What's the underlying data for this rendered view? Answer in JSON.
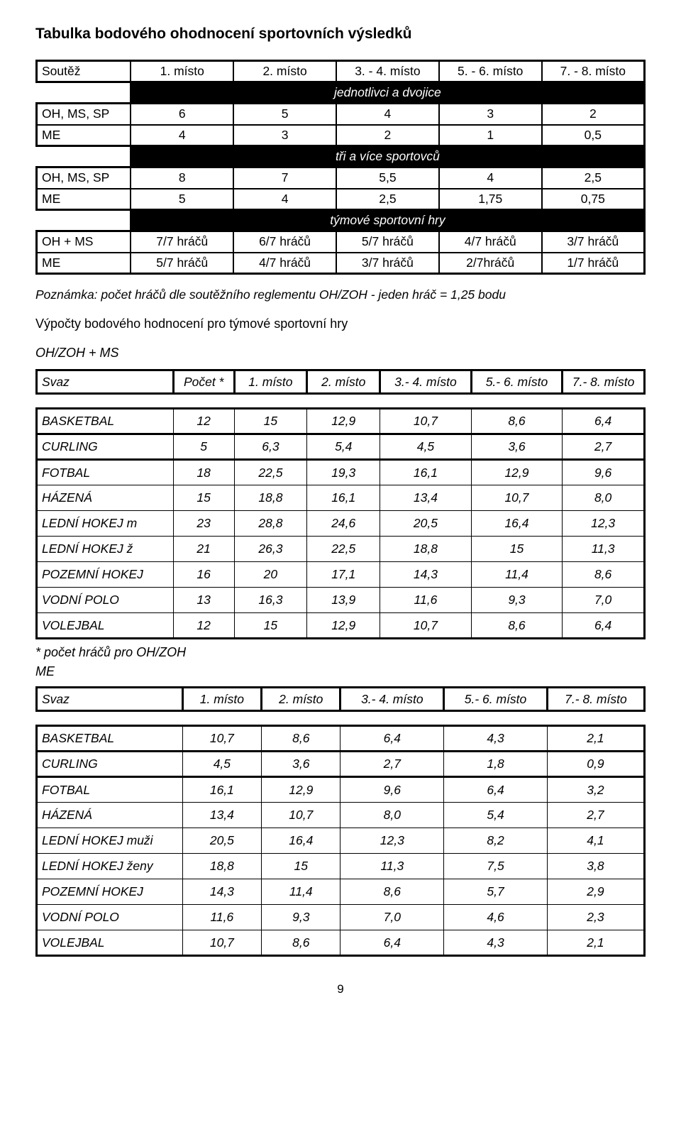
{
  "title": "Tabulka bodového ohodnocení sportovních výsledků",
  "t1": {
    "headers": [
      "Soutěž",
      "1. místo",
      "2. místo",
      "3. - 4. místo",
      "5. - 6. místo",
      "7. - 8. místo"
    ],
    "banner1": "jednotlivci a dvojice",
    "r1": [
      "OH, MS, SP",
      "6",
      "5",
      "4",
      "3",
      "2"
    ],
    "r2": [
      "ME",
      "4",
      "3",
      "2",
      "1",
      "0,5"
    ],
    "banner2": "tři a více sportovců",
    "r3": [
      "OH, MS, SP",
      "8",
      "7",
      "5,5",
      "4",
      "2,5"
    ],
    "r4": [
      "ME",
      "5",
      "4",
      "2,5",
      "1,75",
      "0,75"
    ],
    "banner3": "týmové sportovní hry",
    "r5": [
      "OH + MS",
      "7/7 hráčů",
      "6/7 hráčů",
      "5/7 hráčů",
      "4/7 hráčů",
      "3/7 hráčů"
    ],
    "r6": [
      "ME",
      "5/7 hráčů",
      "4/7 hráčů",
      "3/7 hráčů",
      "2/7hráčů",
      "1/7 hráčů"
    ]
  },
  "note": "Poznámka: počet hráčů dle soutěžního reglementu OH/ZOH - jeden hráč = 1,25 bodu",
  "para": "Výpočty bodového hodnocení pro týmové sportovní hry",
  "section1": "OH/ZOH + MS",
  "hdrA": [
    "Svaz",
    "Počet *",
    "1. místo",
    "2. místo",
    "3.- 4. místo",
    "5.- 6. místo",
    "7.- 8. místo"
  ],
  "tableA": [
    [
      "BASKETBAL",
      "12",
      "15",
      "12,9",
      "10,7",
      "8,6",
      "6,4"
    ],
    [
      "CURLING",
      "5",
      "6,3",
      "5,4",
      "4,5",
      "3,6",
      "2,7"
    ],
    [
      "FOTBAL",
      "18",
      "22,5",
      "19,3",
      "16,1",
      "12,9",
      "9,6"
    ],
    [
      "HÁZENÁ",
      "15",
      "18,8",
      "16,1",
      "13,4",
      "10,7",
      "8,0"
    ],
    [
      "LEDNÍ HOKEJ  m",
      "23",
      "28,8",
      "24,6",
      "20,5",
      "16,4",
      "12,3"
    ],
    [
      "LEDNÍ HOKEJ  ž",
      "21",
      "26,3",
      "22,5",
      "18,8",
      "15",
      "11,3"
    ],
    [
      "POZEMNÍ HOKEJ",
      "16",
      "20",
      "17,1",
      "14,3",
      "11,4",
      "8,6"
    ],
    [
      "VODNÍ POLO",
      "13",
      "16,3",
      "13,9",
      "11,6",
      "9,3",
      "7,0"
    ],
    [
      "VOLEJBAL",
      "12",
      "15",
      "12,9",
      "10,7",
      "8,6",
      "6,4"
    ]
  ],
  "tableA_sep_after": [
    0,
    1
  ],
  "footnoteA": "* počet hráčů pro OH/ZOH",
  "me_label": "ME",
  "hdrB": [
    "Svaz",
    "1. místo",
    "2. místo",
    "3.- 4. místo",
    "5.- 6. místo",
    "7.- 8. místo"
  ],
  "tableB": [
    [
      "BASKETBAL",
      "10,7",
      "8,6",
      "6,4",
      "4,3",
      "2,1"
    ],
    [
      "CURLING",
      "4,5",
      "3,6",
      "2,7",
      "1,8",
      "0,9"
    ],
    [
      "FOTBAL",
      "16,1",
      "12,9",
      "9,6",
      "6,4",
      "3,2"
    ],
    [
      "HÁZENÁ",
      "13,4",
      "10,7",
      "8,0",
      "5,4",
      "2,7"
    ],
    [
      "LEDNÍ HOKEJ  muži",
      "20,5",
      "16,4",
      "12,3",
      "8,2",
      "4,1"
    ],
    [
      "LEDNÍ HOKEJ  ženy",
      "18,8",
      "15",
      "11,3",
      "7,5",
      "3,8"
    ],
    [
      "POZEMNÍ HOKEJ",
      "14,3",
      "11,4",
      "8,6",
      "5,7",
      "2,9"
    ],
    [
      "VODNÍ POLO",
      "11,6",
      "9,3",
      "7,0",
      "4,6",
      "2,3"
    ],
    [
      "VOLEJBAL",
      "10,7",
      "8,6",
      "6,4",
      "4,3",
      "2,1"
    ]
  ],
  "tableB_sep_after": [
    0,
    1
  ],
  "colWidthsA": [
    "22.5%",
    "10%",
    "12%",
    "12%",
    "15%",
    "15%",
    "13.5%"
  ],
  "colWidthsB": [
    "24%",
    "13%",
    "13%",
    "17%",
    "17%",
    "16%"
  ],
  "pagenum": "9"
}
